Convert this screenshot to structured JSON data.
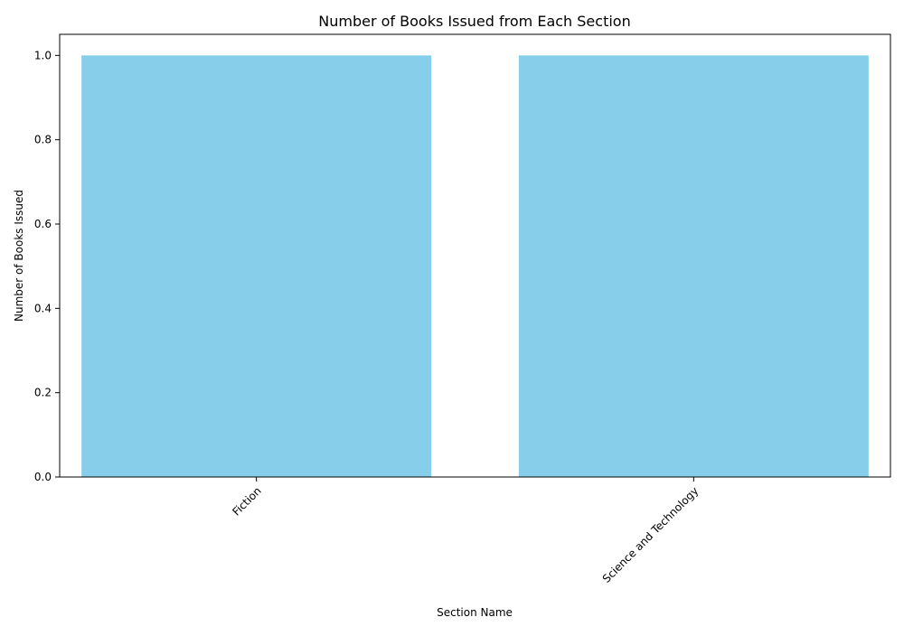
{
  "chart_data": {
    "type": "bar",
    "title": "Number of Books Issued from Each Section",
    "xlabel": "Section Name",
    "ylabel": "Number of Books Issued",
    "categories": [
      "Fiction",
      "Science and Technology"
    ],
    "values": [
      1,
      1
    ],
    "ylim": [
      0,
      1.05
    ],
    "yticks": [
      "0.0",
      "0.2",
      "0.4",
      "0.6",
      "0.8",
      "1.0"
    ],
    "bar_color": "#87ceeb",
    "grid": false,
    "xtick_rotation_deg": 45
  }
}
